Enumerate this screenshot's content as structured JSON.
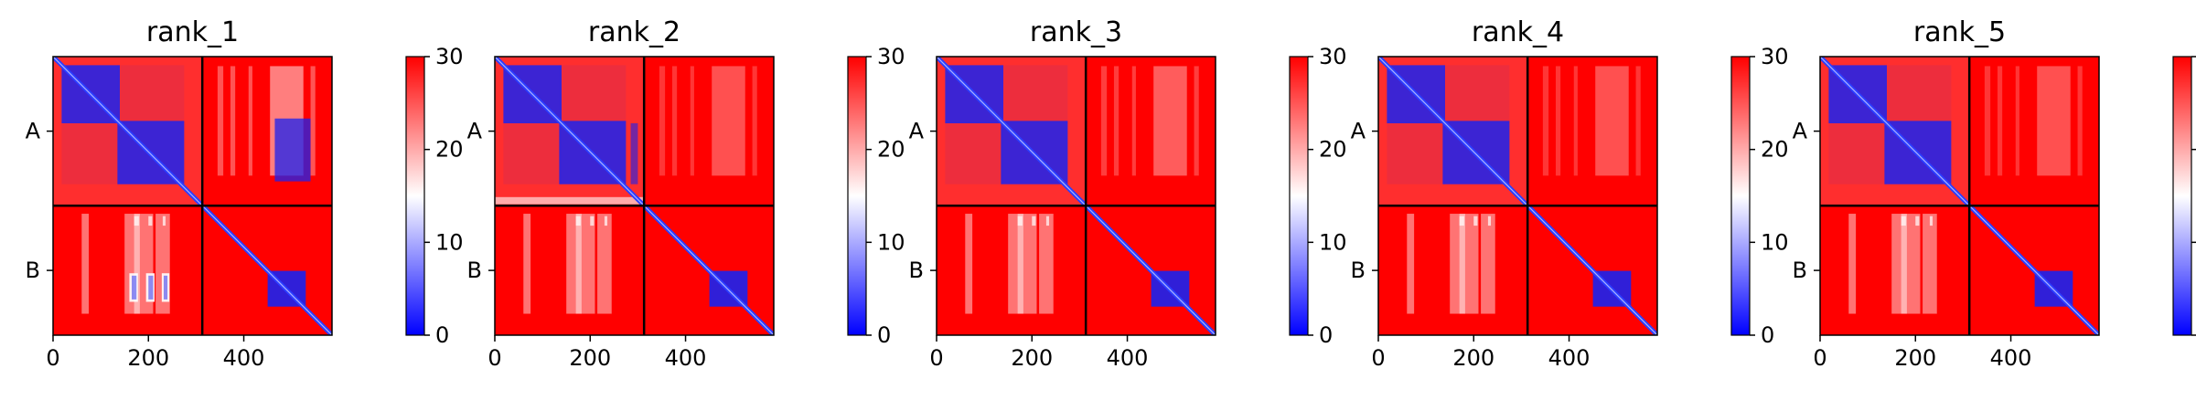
{
  "chart_data": {
    "type": "heatmap",
    "panels": [
      {
        "title": "rank_1",
        "variant": 1
      },
      {
        "title": "rank_2",
        "variant": 2
      },
      {
        "title": "rank_3",
        "variant": 3
      },
      {
        "title": "rank_4",
        "variant": 4
      },
      {
        "title": "rank_5",
        "variant": 5
      }
    ],
    "x_ticks": [
      0,
      200,
      400
    ],
    "x_range": [
      0,
      585
    ],
    "chain_labels": [
      "A",
      "B"
    ],
    "chain_boundary": 313,
    "colorbar": {
      "min": 0,
      "max": 30,
      "ticks": [
        0,
        10,
        20,
        30
      ],
      "colors": [
        "#0000ff",
        "#ffffff",
        "#ff0000"
      ]
    },
    "colormap": "bwr"
  }
}
